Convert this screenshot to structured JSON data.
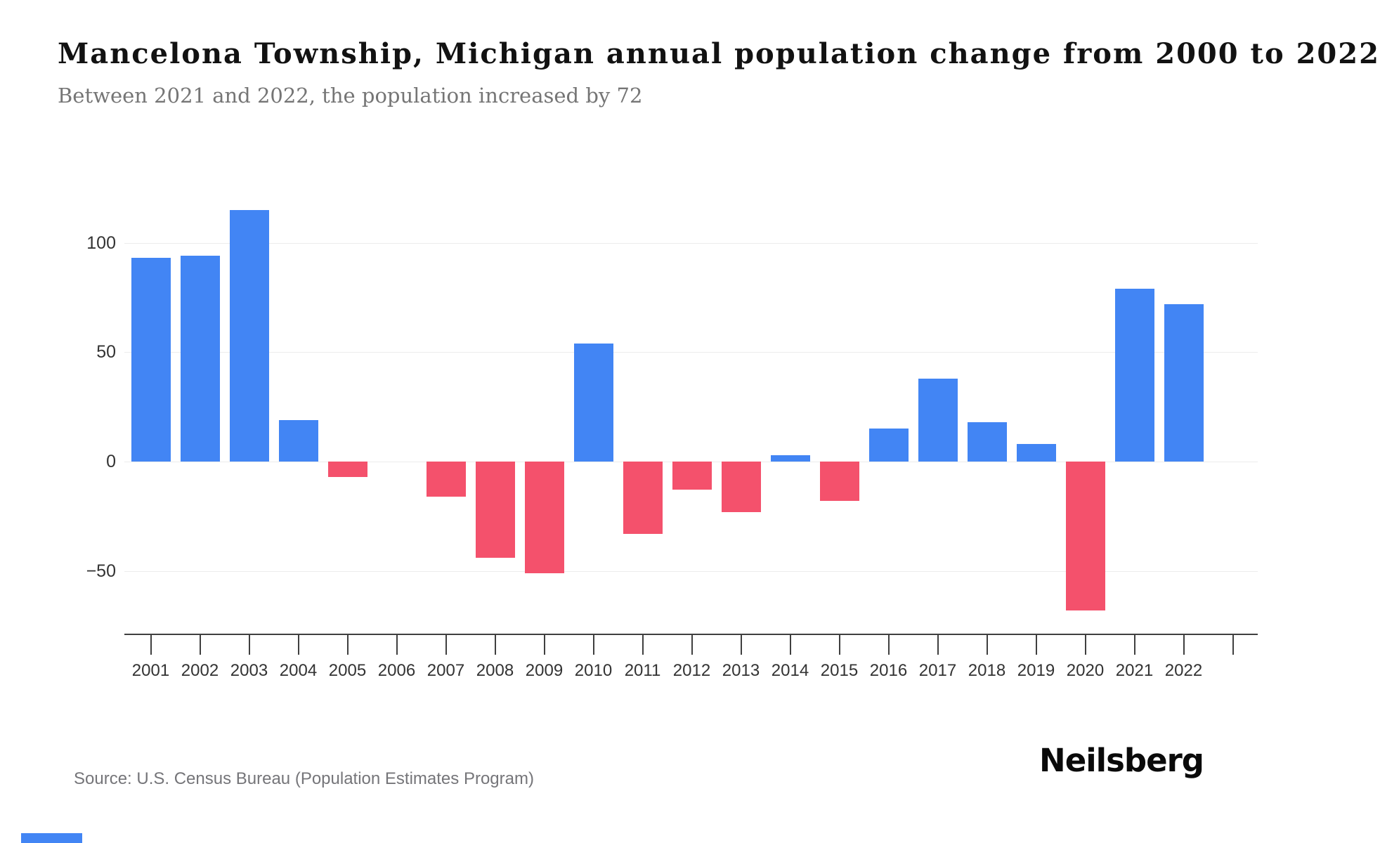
{
  "header": {
    "title": "Mancelona Township, Michigan annual population change from 2000 to 2022",
    "subtitle": "Between 2021 and 2022, the population increased by 72"
  },
  "chart_data": {
    "type": "bar",
    "title": "Mancelona Township, Michigan annual population change from 2000 to 2022",
    "subtitle": "Between 2021 and 2022, the population increased by 72",
    "categories": [
      "2001",
      "2002",
      "2003",
      "2004",
      "2005",
      "2006",
      "2007",
      "2008",
      "2009",
      "2010",
      "2011",
      "2012",
      "2013",
      "2014",
      "2015",
      "2016",
      "2017",
      "2018",
      "2019",
      "2020",
      "2021",
      "2022"
    ],
    "values": [
      93,
      94,
      115,
      19,
      -7,
      0,
      -16,
      -44,
      -51,
      54,
      -33,
      -13,
      -23,
      3,
      -18,
      15,
      38,
      18,
      8,
      -68,
      79,
      72
    ],
    "yticks": [
      100,
      50,
      0,
      -50
    ],
    "ylim": [
      -80,
      125
    ],
    "xlabel": "",
    "ylabel": "",
    "grid": true,
    "legend": false
  },
  "footer": {
    "source": "Source: U.S. Census Bureau (Population Estimates Program)",
    "brand": "Neilsberg"
  },
  "colors": {
    "positive": "#4285F4",
    "negative": "#F4516C",
    "gridline": "#ECECEC",
    "axis": "#3F3F3F",
    "tick_label": "#333333"
  }
}
